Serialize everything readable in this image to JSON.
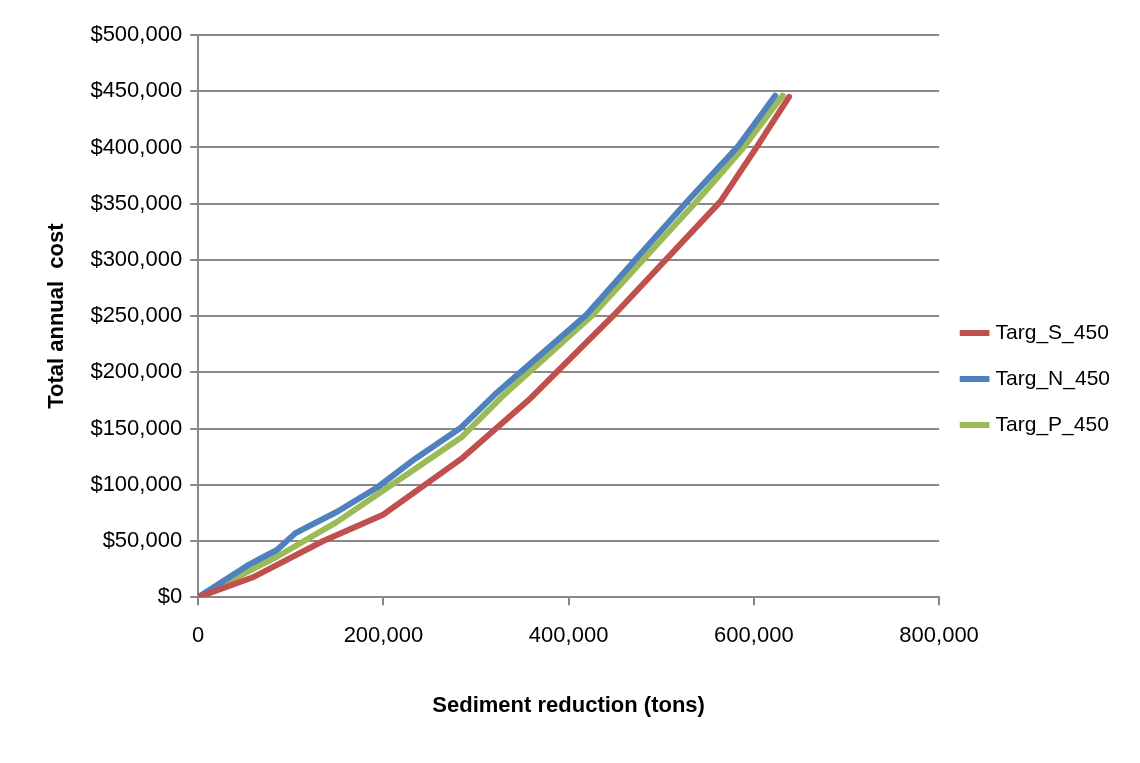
{
  "chart_data": {
    "type": "line",
    "xlabel": "Sediment reduction (tons)",
    "ylabel": "Total annual  cost",
    "xlim": [
      0,
      800000
    ],
    "xticks": [
      0,
      {
        "value": 200000,
        "label": "200,000"
      },
      {
        "value": 400000,
        "label": "400,000"
      },
      {
        "value": 600000,
        "label": "600,000"
      },
      {
        "value": 800000,
        "label": "800,000"
      }
    ],
    "ylim": [
      0,
      500000
    ],
    "yticks": [
      {
        "value": 0,
        "label": "$0"
      },
      {
        "value": 50000,
        "label": "$50,000"
      },
      {
        "value": 100000,
        "label": "$100,000"
      },
      {
        "value": 150000,
        "label": "$150,000"
      },
      {
        "value": 200000,
        "label": "$200,000"
      },
      {
        "value": 250000,
        "label": "$250,000"
      },
      {
        "value": 300000,
        "label": "$300,000"
      },
      {
        "value": 350000,
        "label": "$350,000"
      },
      {
        "value": 400000,
        "label": "$400,000"
      },
      {
        "value": 450000,
        "label": "$450,000"
      },
      {
        "value": 500000,
        "label": "$500,000"
      }
    ],
    "grid": "y",
    "legend": "right",
    "marker": "none",
    "line_style": "solid",
    "series": [
      {
        "name": "Targ_S_450",
        "color": "#c0504d",
        "x": [
          0,
          60000,
          135000,
          199000,
          284000,
          359000,
          449000,
          564000,
          602000,
          638000
        ],
        "values": [
          0,
          18000,
          50000,
          73000,
          123000,
          177000,
          251000,
          352000,
          399000,
          445000
        ]
      },
      {
        "name": "Targ_N_450",
        "color": "#4f81bd",
        "x": [
          0,
          55000,
          85000,
          105000,
          150000,
          194000,
          234000,
          284000,
          320000,
          419000,
          528000,
          583000,
          623000
        ],
        "values": [
          0,
          29000,
          42000,
          57000,
          76000,
          98000,
          123000,
          151000,
          180000,
          251000,
          352000,
          401000,
          446000
        ]
      },
      {
        "name": "Targ_P_450",
        "color": "#9bbb59",
        "x": [
          0,
          85000,
          150000,
          234000,
          284000,
          329000,
          426000,
          538000,
          588000,
          631000
        ],
        "values": [
          0,
          36000,
          67000,
          114000,
          142000,
          179000,
          251000,
          352000,
          399000,
          446000
        ]
      }
    ]
  }
}
